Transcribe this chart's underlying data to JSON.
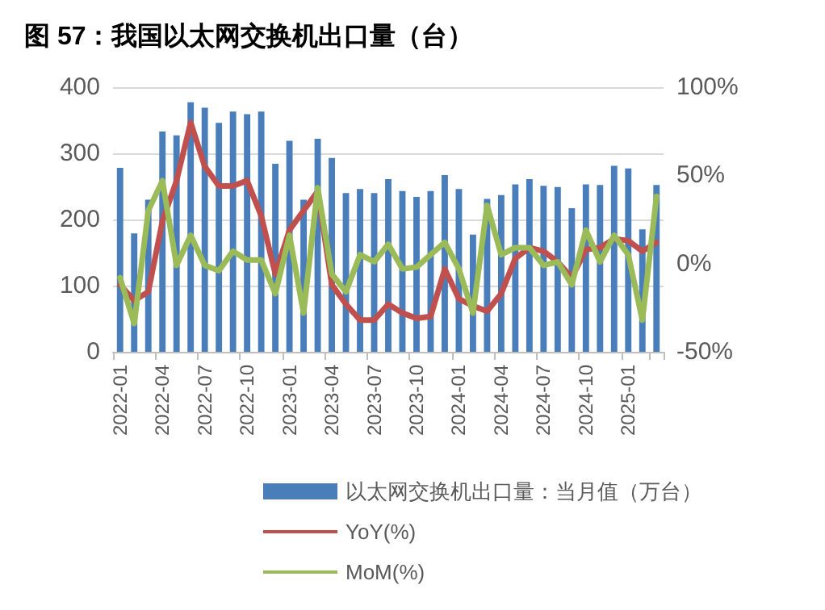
{
  "chart_data": {
    "type": "bar",
    "title": "图 57：我国以太网交换机出口量（台）",
    "categories": [
      "2022-01",
      null,
      null,
      "2022-04",
      null,
      null,
      "2022-07",
      null,
      null,
      "2022-10",
      null,
      null,
      "2023-01",
      null,
      null,
      "2023-04",
      null,
      null,
      "2023-07",
      null,
      null,
      "2023-10",
      null,
      null,
      "2024-01",
      null,
      null,
      "2024-04",
      null,
      null,
      "2024-07",
      null,
      null,
      "2024-10",
      null,
      null,
      "2025-01",
      null,
      null
    ],
    "series": [
      {
        "name": "以太网交换机出口量：当月值（万台）",
        "color": "#4a7ebb",
        "values": [
          278,
          179,
          230,
          333,
          327,
          377,
          369,
          346,
          363,
          359,
          363,
          284,
          319,
          230,
          322,
          293,
          240,
          246,
          240,
          261,
          243,
          234,
          243,
          267,
          246,
          177,
          231,
          237,
          253,
          261,
          251,
          249,
          217,
          253,
          252,
          281,
          277,
          185,
          252
        ]
      },
      {
        "name": "YoY(%)",
        "type": "line",
        "axis": "y2",
        "color": "#c0504d",
        "values": [
          -12,
          -21,
          -16,
          24,
          47,
          80,
          55,
          44,
          44,
          47,
          27,
          -6,
          19,
          30,
          41,
          -12,
          -23,
          -32,
          -32,
          -23,
          -28,
          -31,
          -30,
          -3,
          -20,
          -24,
          -27,
          -17,
          3,
          9,
          7,
          1,
          -8,
          8,
          9,
          14,
          13,
          7,
          12
        ]
      },
      {
        "name": "MoM(%)",
        "type": "line",
        "axis": "y2",
        "color": "#9bbb59",
        "values": [
          -8,
          -34,
          30,
          47,
          -1,
          16,
          -1,
          -4,
          7,
          2,
          2,
          -17,
          16,
          -28,
          43,
          -6,
          -16,
          5,
          1,
          11,
          -3,
          -2,
          5,
          12,
          -3,
          -28,
          33,
          5,
          9,
          9,
          -1,
          1,
          -12,
          19,
          1,
          16,
          5,
          -32,
          38
        ]
      }
    ],
    "ylim": [
      0,
      400
    ],
    "yticks": [
      0,
      100,
      200,
      300,
      400
    ],
    "y2lim": [
      -50,
      100
    ],
    "y2ticks": [
      {
        "value": -50,
        "label": "-50%"
      },
      {
        "value": 0,
        "label": "0%"
      },
      {
        "value": 50,
        "label": "50%"
      },
      {
        "value": 100,
        "label": "100%"
      }
    ],
    "grid": "y",
    "legend": "bottom",
    "marker": "none",
    "line_style": "solid"
  }
}
